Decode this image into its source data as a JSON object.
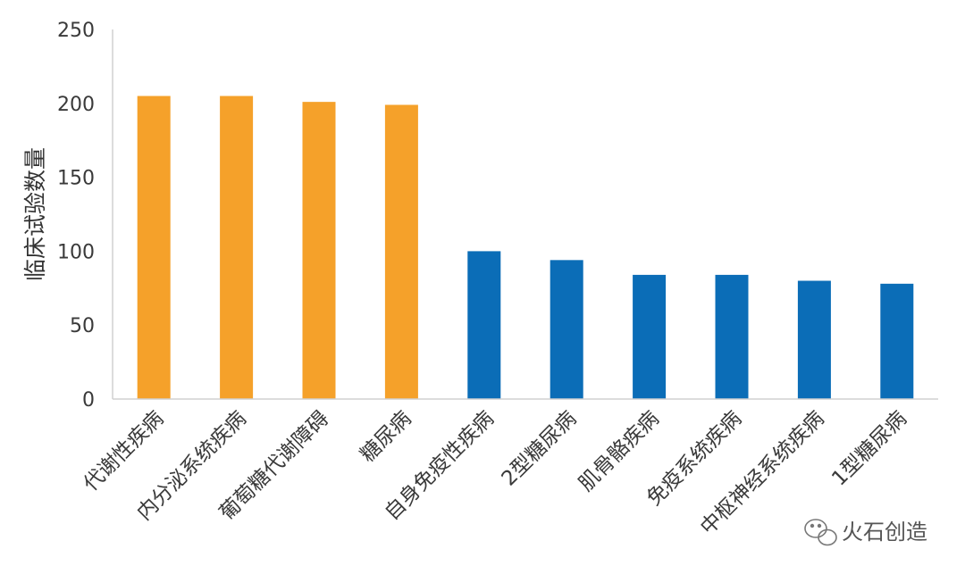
{
  "chart_data": {
    "type": "bar",
    "ylabel": "临床试验数量",
    "xlabel": "",
    "ylim": [
      0,
      250
    ],
    "yticks": [
      0,
      50,
      100,
      150,
      200,
      250
    ],
    "grid": false,
    "categories": [
      "代谢性疾病",
      "内分泌系统疾病",
      "葡萄糖代谢障碍",
      "糖尿病",
      "自身免疫性疾病",
      "2型糖尿病",
      "肌骨骼疾病",
      "免疫系统疾病",
      "中枢神经系统疾病",
      "1型糖尿病"
    ],
    "values": [
      205,
      205,
      201,
      199,
      100,
      94,
      84,
      84,
      80,
      78
    ],
    "colors": [
      "#F5A12A",
      "#F5A12A",
      "#F5A12A",
      "#F5A12A",
      "#0B6DB7",
      "#0B6DB7",
      "#0B6DB7",
      "#0B6DB7",
      "#0B6DB7",
      "#0B6DB7"
    ]
  },
  "watermark": {
    "text": "火石创造",
    "icon": "wechat-icon"
  }
}
